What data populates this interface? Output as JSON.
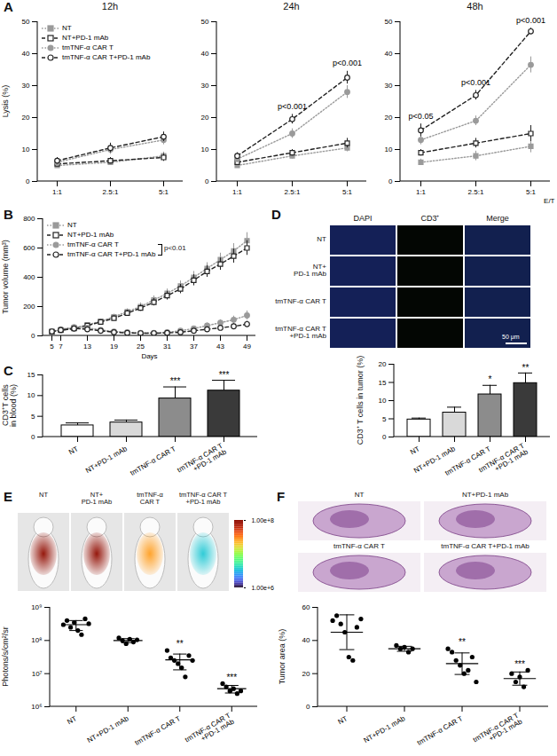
{
  "chart_data": [
    {
      "panel": "A",
      "type": "line",
      "title": "12h",
      "y_label": "Lysis (%)",
      "categories": [
        "1:1",
        "2.5:1",
        "5:1"
      ],
      "ylim": [
        0,
        50
      ],
      "yticks": [
        0,
        10,
        20,
        30,
        40,
        50
      ],
      "legend": "top-left",
      "series": [
        {
          "name": "NT",
          "color": "#9a9a9a",
          "marker": "square",
          "line_style": "dotted",
          "values": [
            5,
            6,
            8
          ],
          "errors": [
            0.8,
            1,
            1.2
          ]
        },
        {
          "name": "NT+PD-1 mAb",
          "color": "#222222",
          "marker": "square-open",
          "line_style": "dashed",
          "values": [
            5.5,
            6.5,
            7.5
          ],
          "errors": [
            0.8,
            1,
            1.2
          ]
        },
        {
          "name": "tmTNF-α CAR T",
          "color": "#9a9a9a",
          "marker": "circle",
          "line_style": "dotted",
          "values": [
            6,
            10,
            13
          ],
          "errors": [
            1,
            1.5,
            1.5
          ]
        },
        {
          "name": "tmTNF-α CAR T+PD-1 mAb",
          "color": "#222222",
          "marker": "circle-open",
          "line_style": "dashed",
          "values": [
            6.5,
            10.5,
            14
          ],
          "errors": [
            1,
            1.5,
            1.5
          ]
        }
      ]
    },
    {
      "type": "line",
      "title": "24h",
      "categories": [
        "1:1",
        "2.5:1",
        "5:1"
      ],
      "ylim": [
        0,
        50
      ],
      "yticks": [
        0,
        10,
        20,
        30,
        40,
        50
      ],
      "series": [
        {
          "name": "NT",
          "color": "#9a9a9a",
          "marker": "square",
          "line_style": "dotted",
          "values": [
            5,
            8,
            10.5
          ],
          "errors": [
            0.8,
            1,
            1.2
          ]
        },
        {
          "name": "NT+PD-1 mAb",
          "color": "#222222",
          "marker": "square-open",
          "line_style": "dashed",
          "values": [
            6,
            9,
            12
          ],
          "errors": [
            0.8,
            1,
            1.5
          ]
        },
        {
          "name": "tmTNF-α CAR T",
          "color": "#9a9a9a",
          "marker": "circle",
          "line_style": "dotted",
          "values": [
            7,
            15,
            28
          ],
          "errors": [
            1,
            1.5,
            2
          ]
        },
        {
          "name": "tmTNF-α CAR T+PD-1 mAb",
          "color": "#222222",
          "marker": "circle-open",
          "line_style": "dashed",
          "values": [
            8,
            19.5,
            32.5
          ],
          "errors": [
            1,
            1.5,
            2
          ]
        }
      ],
      "annotations": [
        {
          "category": "2.5:1",
          "text": "p<0.001"
        },
        {
          "category": "5:1",
          "text": "p<0.001"
        }
      ]
    },
    {
      "type": "line",
      "title": "48h",
      "x_label": "E/T",
      "categories": [
        "1:1",
        "2.5:1",
        "5:1"
      ],
      "ylim": [
        0,
        50
      ],
      "yticks": [
        0,
        10,
        20,
        30,
        40,
        50
      ],
      "series": [
        {
          "name": "NT",
          "color": "#9a9a9a",
          "marker": "square",
          "line_style": "dotted",
          "values": [
            6,
            8,
            11
          ],
          "errors": [
            1,
            1.5,
            2
          ]
        },
        {
          "name": "NT+PD-1 mAb",
          "color": "#222222",
          "marker": "square-open",
          "line_style": "dashed",
          "values": [
            9,
            12,
            15
          ],
          "errors": [
            1,
            1.5,
            2.5
          ]
        },
        {
          "name": "tmTNF-α CAR T",
          "color": "#9a9a9a",
          "marker": "circle",
          "line_style": "dotted",
          "values": [
            13,
            19,
            36.5
          ],
          "errors": [
            1.5,
            1.5,
            2.5
          ]
        },
        {
          "name": "tmTNF-α CAR T+PD-1 mAb",
          "color": "#222222",
          "marker": "circle-open",
          "line_style": "dashed",
          "values": [
            16,
            27,
            47
          ],
          "errors": [
            2,
            1.5,
            1
          ]
        }
      ],
      "annotations": [
        {
          "category": "1:1",
          "text": "p<0.05"
        },
        {
          "category": "2.5:1",
          "text": "p<0.001"
        },
        {
          "category": "5:1",
          "text": "p<0.001"
        }
      ]
    },
    {
      "panel": "B",
      "type": "line",
      "x_label": "Days",
      "y_label": "Tumor volume (mm³)",
      "x": [
        5,
        7,
        10,
        13,
        16,
        19,
        22,
        25,
        28,
        31,
        34,
        37,
        40,
        43,
        46,
        49
      ],
      "xlim": [
        3,
        51
      ],
      "xticks": [
        5,
        7,
        13,
        19,
        25,
        31,
        37,
        43,
        49
      ],
      "ylim": [
        0,
        800
      ],
      "yticks": [
        0,
        200,
        400,
        600,
        800
      ],
      "legend": "top-left",
      "series": [
        {
          "name": "NT",
          "color": "#9a9a9a",
          "marker": "square",
          "line_style": "dotted",
          "values": [
            30,
            40,
            55,
            75,
            100,
            130,
            165,
            200,
            245,
            290,
            340,
            400,
            460,
            520,
            580,
            650
          ],
          "errors": [
            5,
            8,
            10,
            12,
            15,
            18,
            20,
            25,
            28,
            30,
            35,
            40,
            40,
            45,
            50,
            55
          ]
        },
        {
          "name": "NT+PD-1 mAb",
          "color": "#222222",
          "marker": "square-open",
          "line_style": "dashed",
          "values": [
            28,
            38,
            50,
            70,
            95,
            120,
            155,
            190,
            230,
            275,
            320,
            380,
            440,
            490,
            545,
            600
          ],
          "errors": [
            5,
            8,
            10,
            12,
            15,
            18,
            20,
            22,
            25,
            30,
            32,
            38,
            40,
            42,
            48,
            50
          ]
        },
        {
          "name": "tmTNF-α CAR T",
          "color": "#9a9a9a",
          "marker": "circle",
          "line_style": "dotted",
          "values": [
            30,
            45,
            60,
            55,
            40,
            30,
            25,
            20,
            20,
            25,
            35,
            50,
            70,
            90,
            110,
            140
          ],
          "errors": [
            5,
            8,
            12,
            12,
            10,
            10,
            8,
            8,
            8,
            10,
            12,
            15,
            18,
            20,
            25,
            30
          ]
        },
        {
          "name": "tmTNF-α CAR T+PD-1 mAb",
          "color": "#222222",
          "marker": "circle-open",
          "line_style": "dashed",
          "values": [
            30,
            40,
            50,
            45,
            35,
            25,
            20,
            18,
            18,
            20,
            25,
            35,
            45,
            55,
            65,
            80
          ],
          "errors": [
            5,
            8,
            10,
            10,
            8,
            8,
            6,
            6,
            6,
            8,
            10,
            12,
            14,
            16,
            18,
            20
          ]
        }
      ],
      "annotations": [
        {
          "text": "p<0.01",
          "series": [
            "tmTNF-α CAR T",
            "tmTNF-α CAR T+PD-1 mAb"
          ]
        }
      ]
    },
    {
      "panel": "C",
      "type": "bar",
      "y_label": "CD3⁺T cells\nin blood (%)",
      "categories": [
        "NT",
        "NT+PD-1 mAb",
        "tmTNF-α CAR T",
        "tmTNF-α CAR T\n+PD-1 mAb"
      ],
      "values": [
        2.8,
        3.5,
        9.3,
        11.2
      ],
      "errors": [
        0.6,
        0.6,
        2.8,
        2.5
      ],
      "colors": [
        "#ffffff",
        "#d9d9d9",
        "#8c8c8c",
        "#3a3a3a"
      ],
      "significance": [
        null,
        null,
        "***",
        "***"
      ],
      "ylim": [
        0,
        15
      ],
      "yticks": [
        0,
        5,
        10,
        15
      ]
    },
    {
      "panel": "D",
      "type": "bar",
      "y_label": "CD3⁺ T cells in tumor (%)",
      "categories": [
        "NT",
        "NT+PD-1 mAb",
        "tmTNF-α CAR T",
        "tmTNF-α CAR T\n+PD-1 mAb"
      ],
      "values": [
        4.8,
        6.7,
        11.7,
        14.8
      ],
      "errors": [
        0.4,
        1.5,
        2.5,
        2.8
      ],
      "colors": [
        "#ffffff",
        "#d9d9d9",
        "#8c8c8c",
        "#3a3a3a"
      ],
      "significance": [
        null,
        null,
        "*",
        "**"
      ],
      "ylim": [
        0,
        20
      ],
      "yticks": [
        0,
        5,
        10,
        15,
        20
      ]
    },
    {
      "panel": "E",
      "type": "scatter",
      "log": "y",
      "y_label": "Photons/s/cm²/sr",
      "color": "#000000",
      "categories": [
        "NT",
        "NT+PD-1 mAb",
        "tmTNF-α CAR T",
        "tmTNF-α CAR T\n+PD-1 mAb"
      ],
      "points": [
        [
          300000000,
          400000000,
          250000000,
          350000000,
          200000000,
          150000000,
          450000000,
          320000000
        ],
        [
          120000000,
          100000000,
          80000000,
          110000000,
          90000000,
          105000000
        ],
        [
          50000000,
          30000000,
          25000000,
          20000000,
          15000000,
          8000000,
          35000000,
          25000000
        ],
        [
          5000000,
          4000000,
          3000000,
          3500000,
          2500000,
          3000000
        ]
      ],
      "means": [
        300000000,
        100000000,
        26000000,
        3500000
      ],
      "sd": [
        100000000,
        14000000,
        13000000,
        900000
      ],
      "significance": [
        null,
        null,
        "**",
        "***"
      ],
      "ylim": [
        1000000,
        1000000000
      ],
      "yticks": [
        {
          "value": 1000000,
          "label": "10⁶"
        },
        {
          "value": 10000000,
          "label": "10⁷"
        },
        {
          "value": 100000000,
          "label": "10⁸"
        },
        {
          "value": 1000000000,
          "label": "10⁹"
        }
      ]
    },
    {
      "panel": "F",
      "type": "scatter",
      "y_label": "Tumor area (%)",
      "color": "#000000",
      "categories": [
        "NT",
        "NT+PD-1 mAb",
        "tmTNF-α CAR T",
        "tmTNF-α CAR T\n+PD-1 mAb"
      ],
      "points": [
        [
          52,
          55,
          50,
          45,
          30,
          28,
          48,
          53
        ],
        [
          37,
          35,
          36,
          33,
          35
        ],
        [
          35,
          33,
          28,
          25,
          20,
          22,
          30,
          15
        ],
        [
          20,
          15,
          18,
          12,
          22
        ]
      ],
      "means": [
        45,
        35,
        26,
        17
      ],
      "sd": [
        10.5,
        1.5,
        6.5,
        4
      ],
      "significance": [
        null,
        null,
        "**",
        "***"
      ],
      "ylim": [
        0,
        60
      ],
      "yticks": [
        0,
        20,
        40,
        60
      ]
    }
  ],
  "images": {
    "D": {
      "columns": [
        "DAPI",
        "CD3⁺",
        "Merge"
      ],
      "rows": [
        "NT",
        "NT+\nPD-1 mAb",
        "tmTNF-α CAR T",
        "tmTNF-α CAR T\n+PD-1 mAb"
      ],
      "scale_bar": "50 μm"
    },
    "E": {
      "labels": [
        "NT",
        "NT+\nPD-1 mAb",
        "tmTNF-α\nCAR T",
        "tmTNF-α CAR T\n+PD-1 mAb"
      ],
      "colorbar": {
        "range": [
          1000000,
          100000000
        ],
        "ticks": [
          {
            "value": 100000000,
            "label": "1.00e+8"
          },
          {
            "value": 1000000,
            "label": "1.00e+6"
          }
        ]
      }
    },
    "F": {
      "labels": [
        "NT",
        "NT+PD-1 mAb",
        "tmTNF-α CAR T",
        "tmTNF-α CAR T+PD-1 mAb"
      ]
    }
  }
}
